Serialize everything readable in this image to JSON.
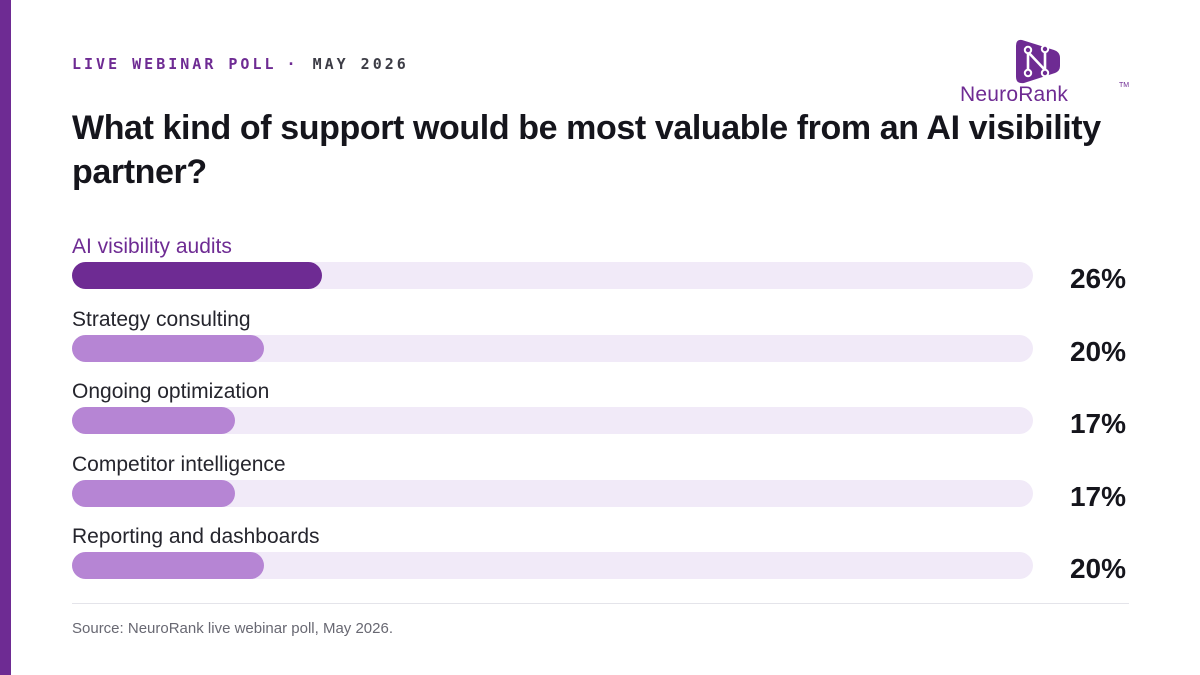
{
  "header": {
    "eyebrow": "LIVE WEBINAR POLL",
    "separator": "·",
    "date": "MAY 2026",
    "title": "What kind of support would be most valuable from an AI visibility partner?"
  },
  "brand": {
    "name": "NeuroRank",
    "trademark": "TM",
    "logo_icon": "circuit-n-icon"
  },
  "colors": {
    "accent": "#6e2b93",
    "bar_default": "#b685d4",
    "track": "#f1eaf8"
  },
  "chart_data": {
    "type": "bar",
    "orientation": "horizontal",
    "title": "What kind of support would be most valuable from an AI visibility partner?",
    "categories": [
      "AI visibility audits",
      "Strategy consulting",
      "Ongoing optimization",
      "Competitor intelligence",
      "Reporting and dashboards"
    ],
    "values": [
      26,
      20,
      17,
      17,
      20
    ],
    "value_labels": [
      "26%",
      "20%",
      "17%",
      "17%",
      "20%"
    ],
    "unit": "%",
    "xlim": [
      0,
      100
    ],
    "highlight_index": 0,
    "grid": false
  },
  "footer": {
    "source": "Source: NeuroRank live webinar poll, May 2026."
  }
}
